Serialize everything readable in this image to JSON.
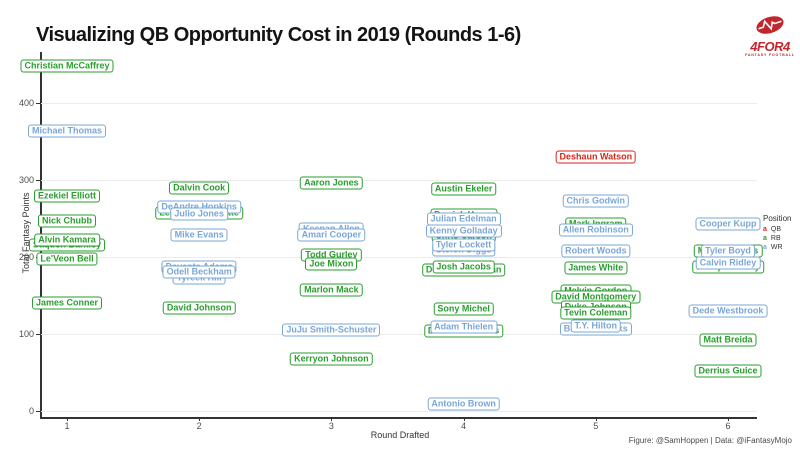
{
  "caption": "Figure: @SamHoppen | Data: @iFantasyMojo",
  "logo": {
    "brand": "4FOR4",
    "tagline": "FANTASY FOOTBALL"
  },
  "legend": {
    "title": "Position",
    "marker_glyph": "a",
    "entries": [
      {
        "label": "QB",
        "color": "#d7251d"
      },
      {
        "label": "RB",
        "color": "#2a9d2f"
      },
      {
        "label": "WR",
        "color": "#7aa7d6"
      }
    ]
  },
  "axes": {
    "x_label": "Round Drafted",
    "y_label": "Total Fantasy Points",
    "x_ticks": [
      "1",
      "2",
      "3",
      "4",
      "5",
      "6"
    ],
    "y_ticks": [
      "0",
      "100",
      "200",
      "300",
      "400"
    ]
  },
  "chart_data": {
    "type": "scatter",
    "title": "Visualizing QB Opportunity Cost in 2019 (Rounds 1-6)",
    "xlabel": "Round Drafted",
    "ylabel": "Total Fantasy Points",
    "xlim": [
      0.8,
      6.2
    ],
    "ylim": [
      0,
      460
    ],
    "grid": "horizontal-only",
    "legend_position": "right",
    "marker_style": "boxed-name-labels",
    "colors": {
      "QB": "#d7251d",
      "RB": "#2a9d2f",
      "WR": "#7aa7d6"
    },
    "points": [
      {
        "name": "Christian McCaffrey",
        "position": "RB",
        "round": 1,
        "points": 448
      },
      {
        "name": "Michael Thomas",
        "position": "WR",
        "round": 1,
        "points": 364
      },
      {
        "name": "Ezekiel Elliott",
        "position": "RB",
        "round": 1,
        "points": 279
      },
      {
        "name": "Nick Chubb",
        "position": "RB",
        "round": 1,
        "points": 247
      },
      {
        "name": "Saquon Barkley",
        "position": "RB",
        "round": 1,
        "points": 216
      },
      {
        "name": "Alvin Kamara",
        "position": "RB",
        "round": 1,
        "points": 222
      },
      {
        "name": "Le'Veon Bell",
        "position": "RB",
        "round": 1,
        "points": 197
      },
      {
        "name": "James Conner",
        "position": "RB",
        "round": 1,
        "points": 140
      },
      {
        "name": "Dalvin Cook",
        "position": "RB",
        "round": 2,
        "points": 290
      },
      {
        "name": "Leonard Fournette",
        "position": "RB",
        "round": 2,
        "points": 257
      },
      {
        "name": "DeAndre Hopkins",
        "position": "WR",
        "round": 2,
        "points": 265
      },
      {
        "name": "Julio Jones",
        "position": "WR",
        "round": 2,
        "points": 256
      },
      {
        "name": "Mike Evans",
        "position": "WR",
        "round": 2,
        "points": 229
      },
      {
        "name": "Davante Adams",
        "position": "WR",
        "round": 2,
        "points": 187
      },
      {
        "name": "Tyreek Hill",
        "position": "WR",
        "round": 2,
        "points": 173
      },
      {
        "name": "Odell Beckham",
        "position": "WR",
        "round": 2,
        "points": 181
      },
      {
        "name": "David Johnson",
        "position": "RB",
        "round": 2,
        "points": 134
      },
      {
        "name": "Aaron Jones",
        "position": "RB",
        "round": 3,
        "points": 296
      },
      {
        "name": "Keenan Allen",
        "position": "WR",
        "round": 3,
        "points": 236
      },
      {
        "name": "Amari Cooper",
        "position": "WR",
        "round": 3,
        "points": 229
      },
      {
        "name": "Todd Gurley",
        "position": "RB",
        "round": 3,
        "points": 203
      },
      {
        "name": "Joe Mixon",
        "position": "RB",
        "round": 3,
        "points": 191
      },
      {
        "name": "Marlon Mack",
        "position": "RB",
        "round": 3,
        "points": 157
      },
      {
        "name": "JuJu Smith-Schuster",
        "position": "WR",
        "round": 3,
        "points": 105
      },
      {
        "name": "Kerryon Johnson",
        "position": "RB",
        "round": 3,
        "points": 68
      },
      {
        "name": "Austin Ekeler",
        "position": "RB",
        "round": 4,
        "points": 288
      },
      {
        "name": "Derrick Henry",
        "position": "RB",
        "round": 4,
        "points": 255
      },
      {
        "name": "Chris Carson",
        "position": "RB",
        "round": 4,
        "points": 227
      },
      {
        "name": "Stefon Diggs",
        "position": "WR",
        "round": 4,
        "points": 209
      },
      {
        "name": "Julian Edelman",
        "position": "WR",
        "round": 4,
        "points": 249
      },
      {
        "name": "Kenny Golladay",
        "position": "WR",
        "round": 4,
        "points": 234
      },
      {
        "name": "Tyler Lockett",
        "position": "WR",
        "round": 4,
        "points": 216
      },
      {
        "name": "Devonta Freeman",
        "position": "RB",
        "round": 4,
        "points": 183
      },
      {
        "name": "Josh Jacobs",
        "position": "RB",
        "round": 4,
        "points": 187
      },
      {
        "name": "Sony Michel",
        "position": "RB",
        "round": 4,
        "points": 132
      },
      {
        "name": "Damien Williams",
        "position": "RB",
        "round": 4,
        "points": 104
      },
      {
        "name": "Adam Thielen",
        "position": "WR",
        "round": 4,
        "points": 109
      },
      {
        "name": "Antonio Brown",
        "position": "WR",
        "round": 4,
        "points": 9
      },
      {
        "name": "Deshaun Watson",
        "position": "QB",
        "round": 5,
        "points": 330
      },
      {
        "name": "Chris Godwin",
        "position": "WR",
        "round": 5,
        "points": 273
      },
      {
        "name": "Mark Ingram",
        "position": "RB",
        "round": 5,
        "points": 243
      },
      {
        "name": "Allen Robinson",
        "position": "WR",
        "round": 5,
        "points": 235
      },
      {
        "name": "Robert Woods",
        "position": "WR",
        "round": 5,
        "points": 208
      },
      {
        "name": "James White",
        "position": "RB",
        "round": 5,
        "points": 186
      },
      {
        "name": "Melvin Gordon",
        "position": "RB",
        "round": 5,
        "points": 156
      },
      {
        "name": "David Montgomery",
        "position": "RB",
        "round": 5,
        "points": 148
      },
      {
        "name": "Duke Johnson",
        "position": "RB",
        "round": 5,
        "points": 135
      },
      {
        "name": "Tevin Coleman",
        "position": "RB",
        "round": 5,
        "points": 127
      },
      {
        "name": "Brandin Cooks",
        "position": "WR",
        "round": 5,
        "points": 106
      },
      {
        "name": "T.Y. Hilton",
        "position": "WR",
        "round": 5,
        "points": 110
      },
      {
        "name": "Cooper Kupp",
        "position": "WR",
        "round": 6,
        "points": 243
      },
      {
        "name": "Miles Sanders",
        "position": "RB",
        "round": 6,
        "points": 208
      },
      {
        "name": "Tyler Boyd",
        "position": "WR",
        "round": 6,
        "points": 208
      },
      {
        "name": "Phillip Lindsay",
        "position": "RB",
        "round": 6,
        "points": 187
      },
      {
        "name": "Calvin Ridley",
        "position": "WR",
        "round": 6,
        "points": 192
      },
      {
        "name": "Dede Westbrook",
        "position": "WR",
        "round": 6,
        "points": 130
      },
      {
        "name": "Matt Breida",
        "position": "RB",
        "round": 6,
        "points": 92
      },
      {
        "name": "Derrius Guice",
        "position": "RB",
        "round": 6,
        "points": 52
      }
    ]
  }
}
